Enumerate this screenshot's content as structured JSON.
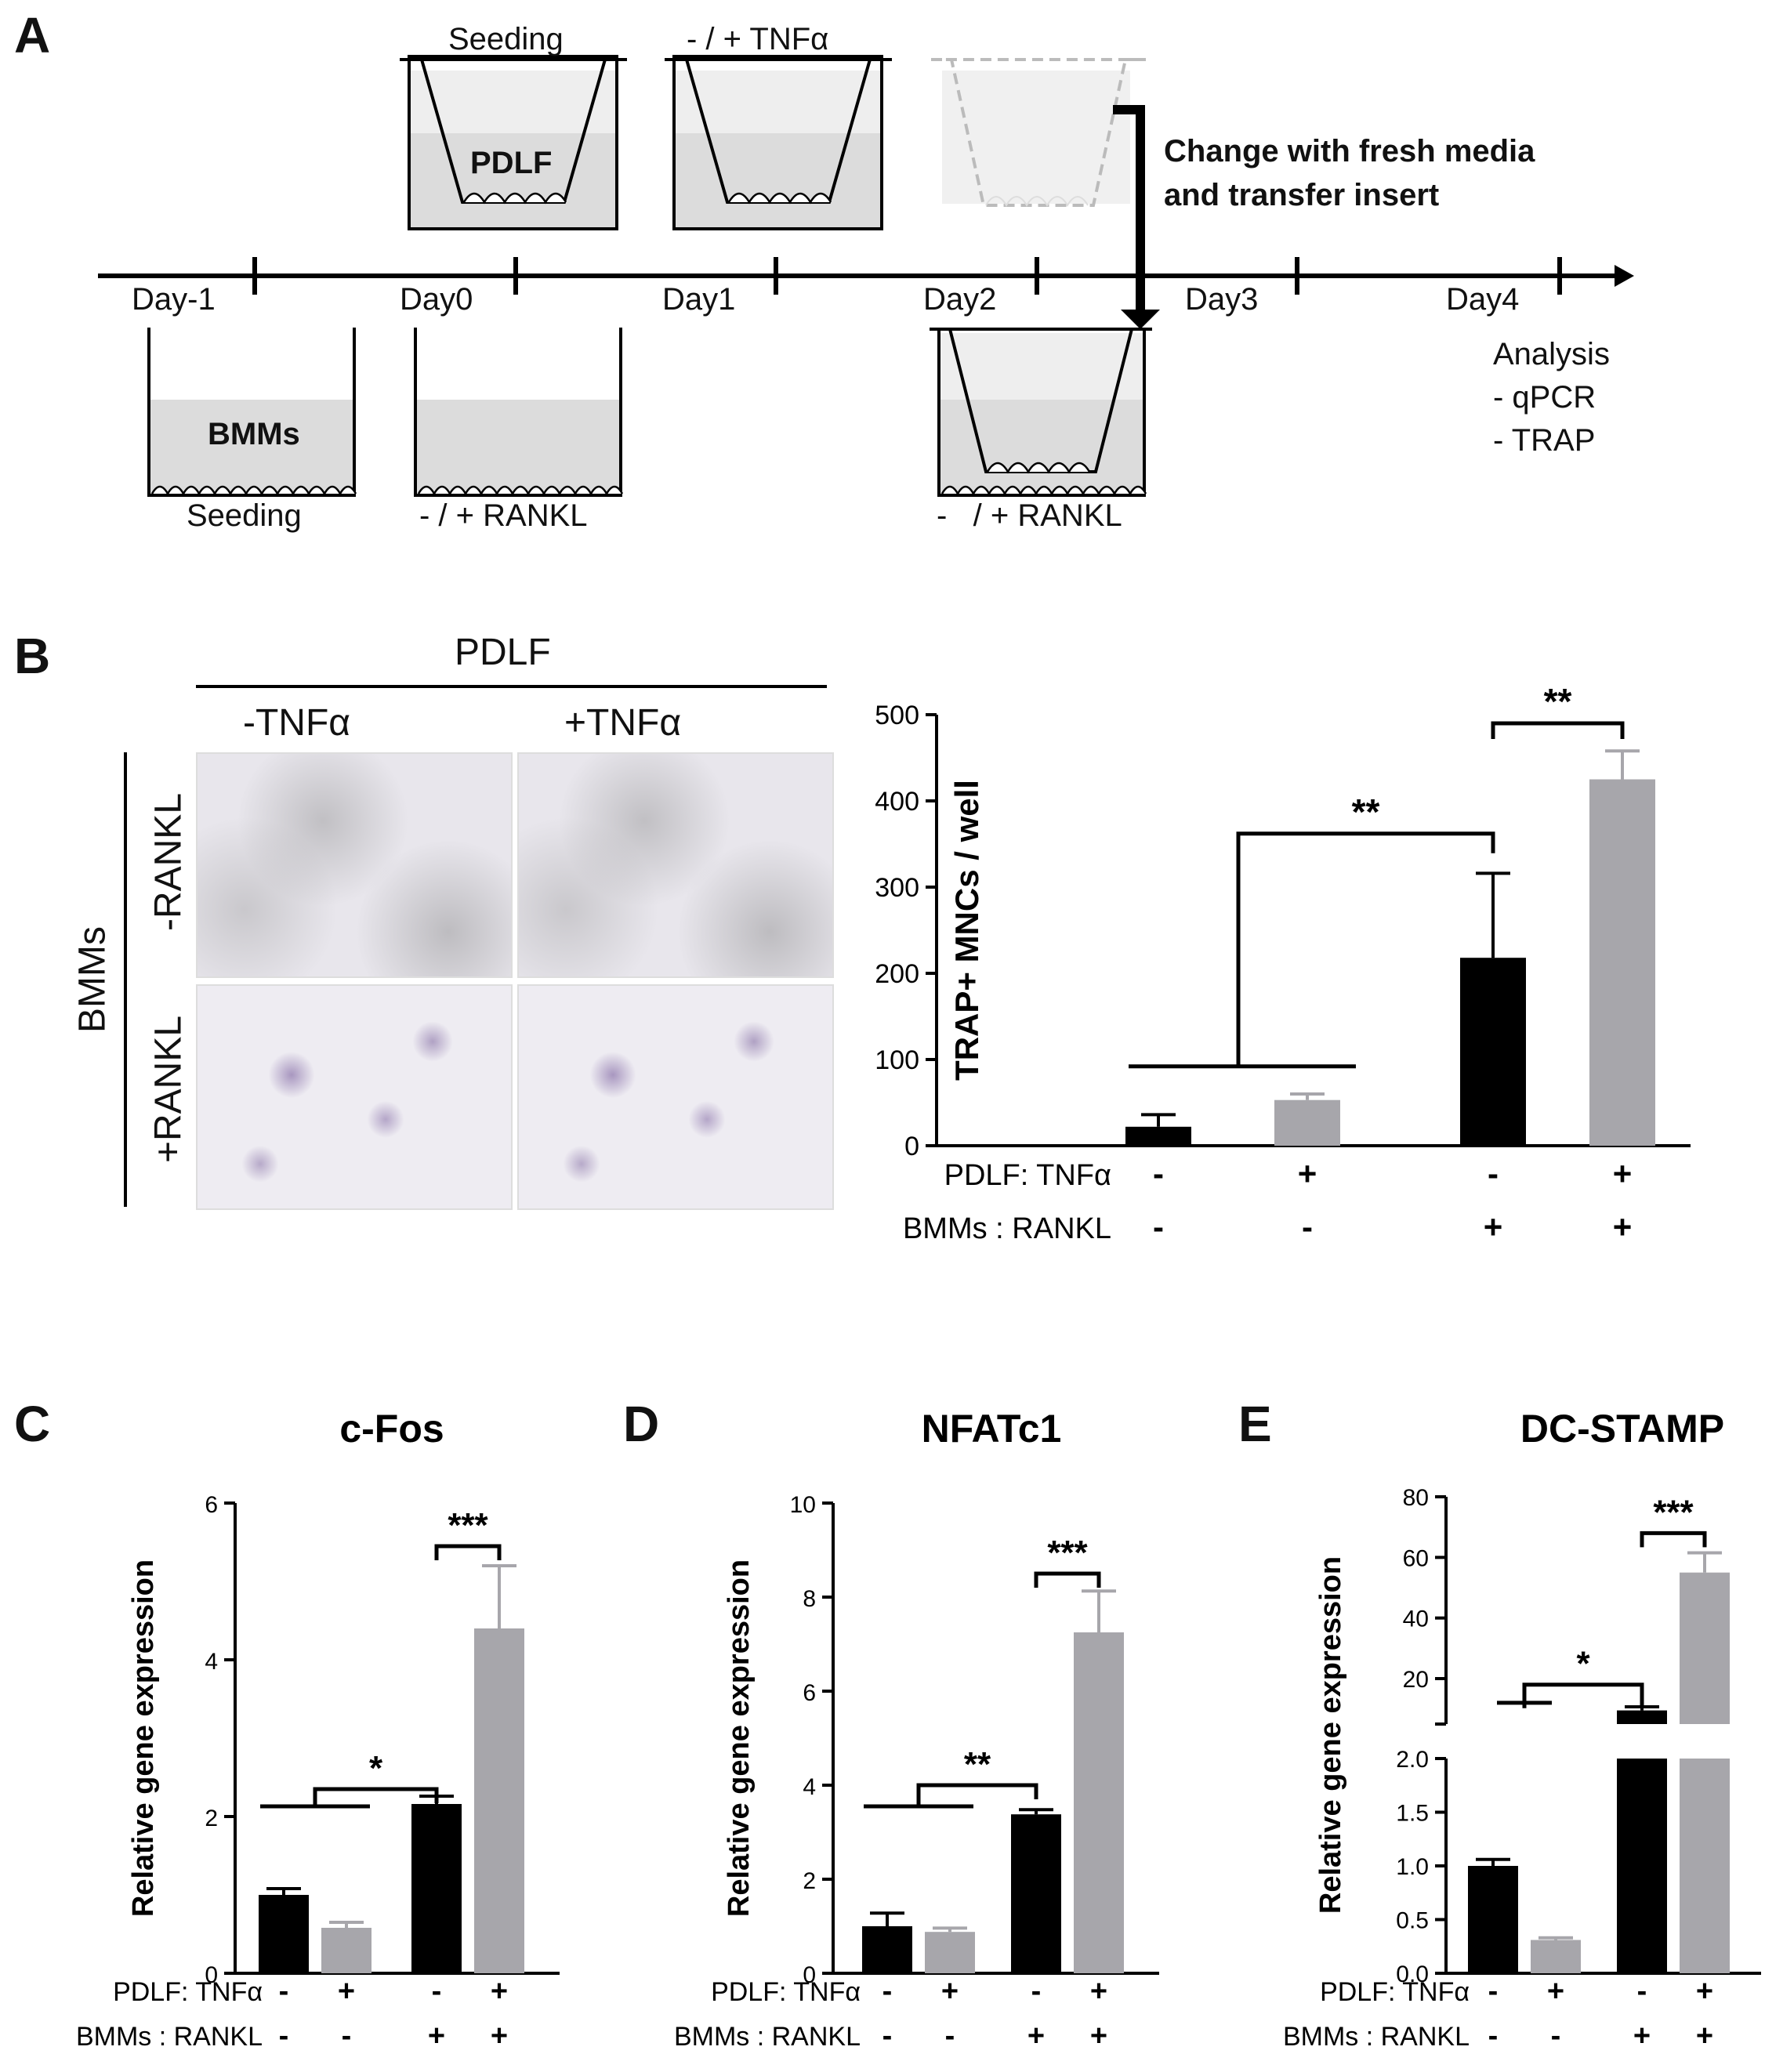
{
  "panels": {
    "A": {
      "letter": "A",
      "days": [
        "Day-1",
        "Day0",
        "Day1",
        "Day2",
        "Day3",
        "Day4"
      ],
      "top_labels": {
        "seeding": "Seeding",
        "tnf": "- / + TNFα"
      },
      "pdlf": "PDLF",
      "bmms": "BMMs",
      "bottom_labels": {
        "seeding": "Seeding",
        "rankl1": "- / + RANKL",
        "rankl2": "-   / + RANKL"
      },
      "change_note": [
        "Change with fresh media",
        "and transfer insert"
      ],
      "analysis": [
        "Analysis",
        "- qPCR",
        "- TRAP"
      ]
    },
    "B": {
      "letter": "B",
      "pdlf_header": "PDLF",
      "col_labels": [
        "-TNFα",
        "+TNFα"
      ],
      "row_group": "BMMs",
      "row_labels": [
        "-RANKL",
        "+RANKL"
      ]
    },
    "C": {
      "letter": "C"
    },
    "D": {
      "letter": "D"
    },
    "E": {
      "letter": "E"
    }
  },
  "chart_data": [
    {
      "id": "B",
      "type": "bar",
      "title": "",
      "ylabel": "TRAP+ MNCs / well",
      "ylim": [
        0,
        500
      ],
      "yticks": [
        "0",
        "100",
        "200",
        "300",
        "400",
        "500"
      ],
      "values": [
        22,
        53,
        218,
        425
      ],
      "errors": [
        14,
        7,
        98,
        33
      ],
      "colors": [
        "#000000",
        "#a7a6ab",
        "#000000",
        "#a7a6ab"
      ],
      "row1_label": "PDLF: TNFα",
      "row2_label": "BMMs : RANKL",
      "row1": [
        "-",
        "+",
        "-",
        "+"
      ],
      "row2": [
        "-",
        "-",
        "+",
        "+"
      ],
      "sig": [
        "**",
        "**"
      ]
    },
    {
      "id": "C",
      "type": "bar",
      "title": "c-Fos",
      "ylabel": "Relative gene expression",
      "ylim": [
        0,
        6
      ],
      "yticks": [
        "0",
        "2",
        "4",
        "6"
      ],
      "values": [
        1.0,
        0.58,
        2.16,
        4.4
      ],
      "errors": [
        0.08,
        0.07,
        0.1,
        0.8
      ],
      "colors": [
        "#000000",
        "#a7a6ab",
        "#000000",
        "#a7a6ab"
      ],
      "row1_label": "PDLF: TNFα",
      "row2_label": "BMMs : RANKL",
      "row1": [
        "-",
        "+",
        "-",
        "+"
      ],
      "row2": [
        "-",
        "-",
        "+",
        "+"
      ],
      "sig": [
        "*",
        "***"
      ]
    },
    {
      "id": "D",
      "type": "bar",
      "title": "NFATc1",
      "ylabel": "Relative gene expression",
      "ylim": [
        0,
        10
      ],
      "yticks": [
        "0",
        "2",
        "4",
        "6",
        "8",
        "10"
      ],
      "values": [
        1.0,
        0.88,
        3.38,
        7.25
      ],
      "errors": [
        0.28,
        0.08,
        0.1,
        0.88
      ],
      "colors": [
        "#000000",
        "#a7a6ab",
        "#000000",
        "#a7a6ab"
      ],
      "row1_label": "PDLF: TNFα",
      "row2_label": "BMMs : RANKL",
      "row1": [
        "-",
        "+",
        "-",
        "+"
      ],
      "row2": [
        "-",
        "-",
        "+",
        "+"
      ],
      "sig": [
        "**",
        "***"
      ]
    },
    {
      "id": "E",
      "type": "bar",
      "title": "DC-STAMP",
      "ylabel": "Relative gene expression",
      "ylim_lower": [
        0,
        2.0
      ],
      "ylim_upper": [
        5,
        80
      ],
      "yticks_lower": [
        "0.0",
        "0.5",
        "1.0",
        "1.5",
        "2.0"
      ],
      "yticks_upper": [
        "20",
        "40",
        "60",
        "80"
      ],
      "values": [
        1.0,
        0.31,
        9.5,
        55.0
      ],
      "errors": [
        0.06,
        0.02,
        1.2,
        6.5
      ],
      "colors": [
        "#000000",
        "#a7a6ab",
        "#000000",
        "#a7a6ab"
      ],
      "row1_label": "PDLF: TNFα",
      "row2_label": "BMMs : RANKL",
      "row1": [
        "-",
        "+",
        "-",
        "+"
      ],
      "row2": [
        "-",
        "-",
        "+",
        "+"
      ],
      "sig": [
        "*",
        "***"
      ]
    }
  ]
}
